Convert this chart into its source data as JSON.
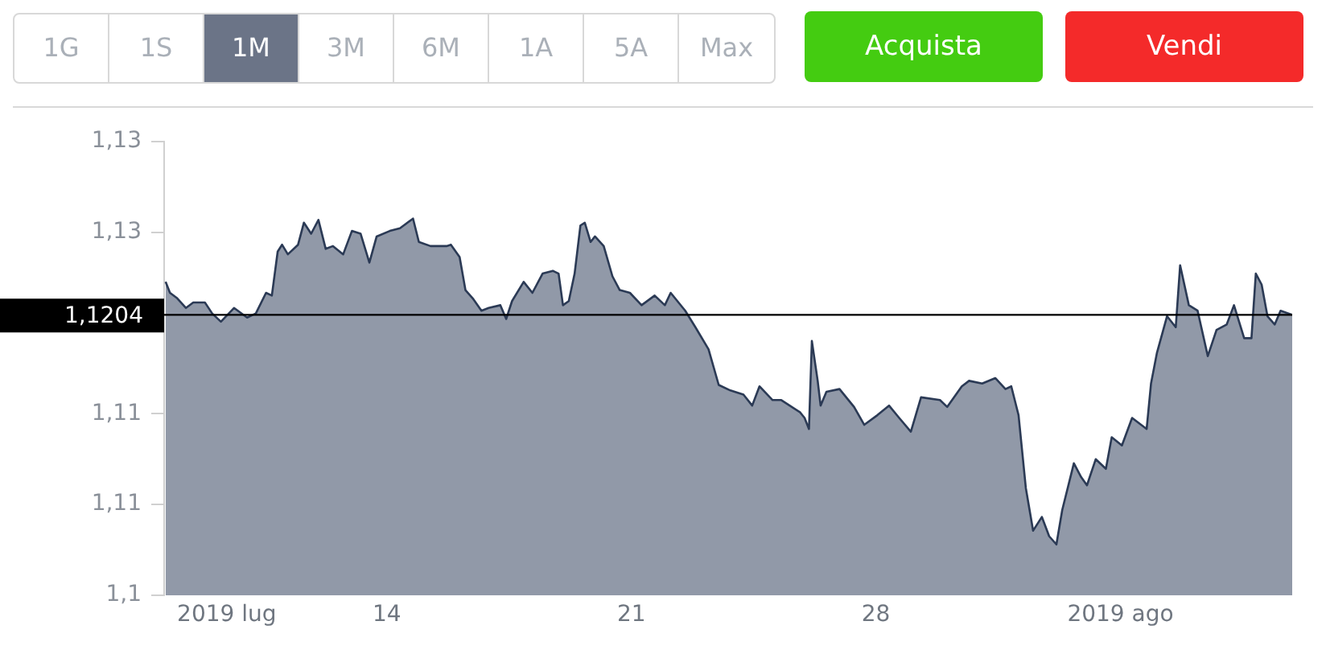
{
  "chart_data": {
    "type": "area",
    "x": [
      "2019-07-07T16:00",
      "2019-07-07T19:00",
      "2019-07-08T00:00",
      "2019-07-08T06:00",
      "2019-07-08T11:00",
      "2019-07-08T19:00",
      "2019-07-09T00:00",
      "2019-07-09T06:00",
      "2019-07-09T15:00",
      "2019-07-10T00:00",
      "2019-07-10T06:00",
      "2019-07-10T13:00",
      "2019-07-10T17:00",
      "2019-07-10T21:00",
      "2019-07-11T00:00",
      "2019-07-11T04:00",
      "2019-07-11T11:00",
      "2019-07-11T15:00",
      "2019-07-11T20:00",
      "2019-07-12T01:00",
      "2019-07-12T06:00",
      "2019-07-12T11:00",
      "2019-07-12T18:00",
      "2019-07-13T00:00",
      "2019-07-13T06:00",
      "2019-07-13T12:00",
      "2019-07-13T17:00",
      "2019-07-14T02:00",
      "2019-07-14T09:00",
      "2019-07-14T18:00",
      "2019-07-14T22:00",
      "2019-07-15T06:00",
      "2019-07-15T17:00",
      "2019-07-15T20:00",
      "2019-07-16T02:00",
      "2019-07-16T06:00",
      "2019-07-16T11:00",
      "2019-07-16T17:00",
      "2019-07-16T22:00",
      "2019-07-17T06:00",
      "2019-07-17T10:00",
      "2019-07-17T14:00",
      "2019-07-17T22:00",
      "2019-07-18T04:00",
      "2019-07-18T11:00",
      "2019-07-18T18:00",
      "2019-07-18T22:00",
      "2019-07-19T01:00",
      "2019-07-19T05:00",
      "2019-07-19T09:00",
      "2019-07-19T13:00",
      "2019-07-19T16:00",
      "2019-07-19T20:00",
      "2019-07-19T23:00",
      "2019-07-20T05:00",
      "2019-07-20T11:00",
      "2019-07-20T16:00",
      "2019-07-20T23:00",
      "2019-07-21T07:00",
      "2019-07-21T16:00",
      "2019-07-21T23:00",
      "2019-07-22T03:00",
      "2019-07-22T13:00",
      "2019-07-22T20:00",
      "2019-07-23T05:00",
      "2019-07-23T12:00",
      "2019-07-23T20:00",
      "2019-07-24T05:00",
      "2019-07-24T11:00",
      "2019-07-24T16:00",
      "2019-07-25T01:00",
      "2019-07-25T07:00",
      "2019-07-25T20:00",
      "2019-07-25T23:00",
      "2019-07-26T02:00",
      "2019-07-26T04:00",
      "2019-07-26T08:00",
      "2019-07-26T10:00",
      "2019-07-26T14:00",
      "2019-07-26T23:00",
      "2019-07-27T09:00",
      "2019-07-27T16:00",
      "2019-07-28T01:00",
      "2019-07-28T09:00",
      "2019-07-28T16:00",
      "2019-07-29T00:00",
      "2019-07-29T07:00",
      "2019-07-29T20:00",
      "2019-07-30T01:00",
      "2019-07-30T11:00",
      "2019-07-30T16:00",
      "2019-07-31T01:00",
      "2019-07-31T10:00",
      "2019-07-31T17:00",
      "2019-07-31T21:00",
      "2019-08-01T02:00",
      "2019-08-01T07:00",
      "2019-08-01T12:00",
      "2019-08-01T18:00",
      "2019-08-01T23:00",
      "2019-08-02T04:00",
      "2019-08-02T08:00",
      "2019-08-02T16:00",
      "2019-08-02T21:00",
      "2019-08-03T01:00",
      "2019-08-03T07:00",
      "2019-08-03T14:00",
      "2019-08-03T18:00",
      "2019-08-04T01:00",
      "2019-08-04T08:00",
      "2019-08-04T18:00",
      "2019-08-04T21:00",
      "2019-08-05T01:00",
      "2019-08-05T08:00",
      "2019-08-05T14:00",
      "2019-08-05T17:00",
      "2019-08-05T23:00",
      "2019-08-06T05:00",
      "2019-08-06T12:00",
      "2019-08-06T18:00",
      "2019-08-07T01:00",
      "2019-08-07T06:00",
      "2019-08-07T13:00",
      "2019-08-07T18:00",
      "2019-08-07T21:00",
      "2019-08-08T01:00",
      "2019-08-08T05:00",
      "2019-08-08T10:00",
      "2019-08-08T14:00",
      "2019-08-08T22:00"
    ],
    "series": [
      {
        "color": "#2b3a55",
        "values": [
          1.1228,
          1.122,
          1.1216,
          1.1209,
          1.1213,
          1.1213,
          1.1205,
          1.1199,
          1.1209,
          1.1202,
          1.1205,
          1.122,
          1.1218,
          1.125,
          1.1255,
          1.1248,
          1.1255,
          1.1271,
          1.1263,
          1.1273,
          1.1252,
          1.1254,
          1.1248,
          1.1265,
          1.1263,
          1.1242,
          1.1261,
          1.1265,
          1.1267,
          1.1274,
          1.1257,
          1.1254,
          1.1254,
          1.1255,
          1.1246,
          1.1222,
          1.1216,
          1.1207,
          1.1209,
          1.1211,
          1.1201,
          1.1214,
          1.1228,
          1.122,
          1.1234,
          1.1236,
          1.1234,
          1.1211,
          1.1214,
          1.1234,
          1.1269,
          1.1271,
          1.1257,
          1.1261,
          1.1254,
          1.1232,
          1.1222,
          1.122,
          1.1211,
          1.1218,
          1.1211,
          1.122,
          1.1207,
          1.1195,
          1.1179,
          1.1153,
          1.1149,
          1.1146,
          1.1138,
          1.1152,
          1.1142,
          1.1142,
          1.1133,
          1.1129,
          1.1121,
          1.1185,
          1.1156,
          1.1138,
          1.1148,
          1.115,
          1.1137,
          1.1124,
          1.1131,
          1.1138,
          1.1129,
          1.1119,
          1.1144,
          1.1142,
          1.1137,
          1.1152,
          1.1156,
          1.1154,
          1.1158,
          1.115,
          1.1152,
          1.1131,
          1.1078,
          1.1047,
          1.1057,
          1.1043,
          1.1037,
          1.1062,
          1.1096,
          1.1086,
          1.108,
          1.1099,
          1.1092,
          1.1115,
          1.1109,
          1.1129,
          1.1121,
          1.1154,
          1.1176,
          1.1203,
          1.1195,
          1.124,
          1.1211,
          1.1207,
          1.1174,
          1.1193,
          1.1197,
          1.1211,
          1.1187,
          1.1187,
          1.1234,
          1.1226,
          1.1203,
          1.1197,
          1.1207,
          1.1204
        ]
      }
    ],
    "xlim": [
      "2019-07-07T15:00",
      "2019-08-08T22:00"
    ],
    "xticks": [
      {
        "value": "2019-07-09T10:00",
        "label": "2019 lug"
      },
      {
        "value": "2019-07-14",
        "label": "14"
      },
      {
        "value": "2019-07-21",
        "label": "21"
      },
      {
        "value": "2019-07-28",
        "label": "28"
      },
      {
        "value": "2019-08-04",
        "label": "2019 ago"
      }
    ],
    "ylim": [
      1.1,
      1.133
    ],
    "yticks": [
      {
        "value": 1.1,
        "label": "1,1"
      },
      {
        "value": 1.1066,
        "label": "1,11"
      },
      {
        "value": 1.1132,
        "label": "1,11"
      },
      {
        "value": 1.1264,
        "label": "1,13"
      },
      {
        "value": 1.133,
        "label": "1,13"
      }
    ],
    "ref_lines": [
      {
        "axis": "y",
        "value": 1.1204,
        "label": "1,1204",
        "color": "#000000"
      }
    ],
    "annotations": [
      "1G",
      "1S",
      "1M",
      "3M",
      "6M",
      "1A",
      "5A",
      "Max",
      "Acquista",
      "Vendi"
    ],
    "grid": false,
    "legend": false,
    "marker": "none"
  }
}
